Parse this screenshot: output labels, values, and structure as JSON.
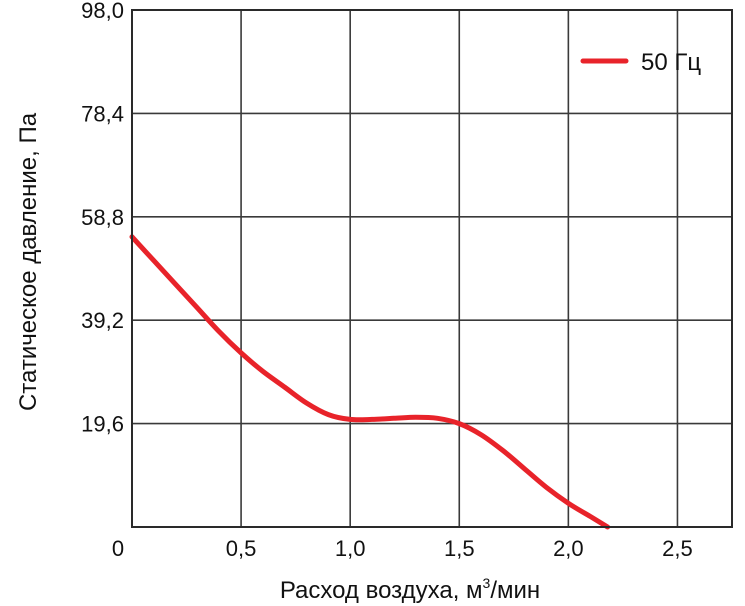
{
  "chart_data": {
    "type": "line",
    "xlabel": "Расход воздуха, м",
    "xlabel_sup": "3",
    "xlabel_suffix": "/мин",
    "ylabel": "Статическое давление, Па",
    "xlim": [
      0,
      2.75
    ],
    "ylim": [
      0,
      98.0
    ],
    "x_ticks": [
      "0,5",
      "1,0",
      "1,5",
      "2,0",
      "2,5"
    ],
    "x_tick_values": [
      0.5,
      1.0,
      1.5,
      2.0,
      2.5
    ],
    "origin_label": "0",
    "y_ticks": [
      "19,6",
      "39,2",
      "58,8",
      "78,4",
      "98,0"
    ],
    "y_tick_values": [
      19.6,
      39.2,
      58.8,
      78.4,
      98.0
    ],
    "grid": true,
    "legend_position": "top-right",
    "series": [
      {
        "name": "50 Гц",
        "color": "#e8232a",
        "x": [
          0.0,
          0.1,
          0.2,
          0.3,
          0.4,
          0.5,
          0.6,
          0.7,
          0.8,
          0.9,
          1.0,
          1.1,
          1.2,
          1.3,
          1.4,
          1.5,
          1.6,
          1.7,
          1.8,
          1.9,
          2.0,
          2.1,
          2.18
        ],
        "y": [
          55.0,
          50.5,
          46.0,
          41.5,
          37.0,
          33.0,
          29.5,
          26.5,
          23.5,
          21.3,
          20.4,
          20.4,
          20.6,
          20.8,
          20.6,
          19.6,
          17.5,
          14.5,
          11.0,
          7.5,
          4.5,
          2.0,
          0.0
        ]
      }
    ]
  }
}
